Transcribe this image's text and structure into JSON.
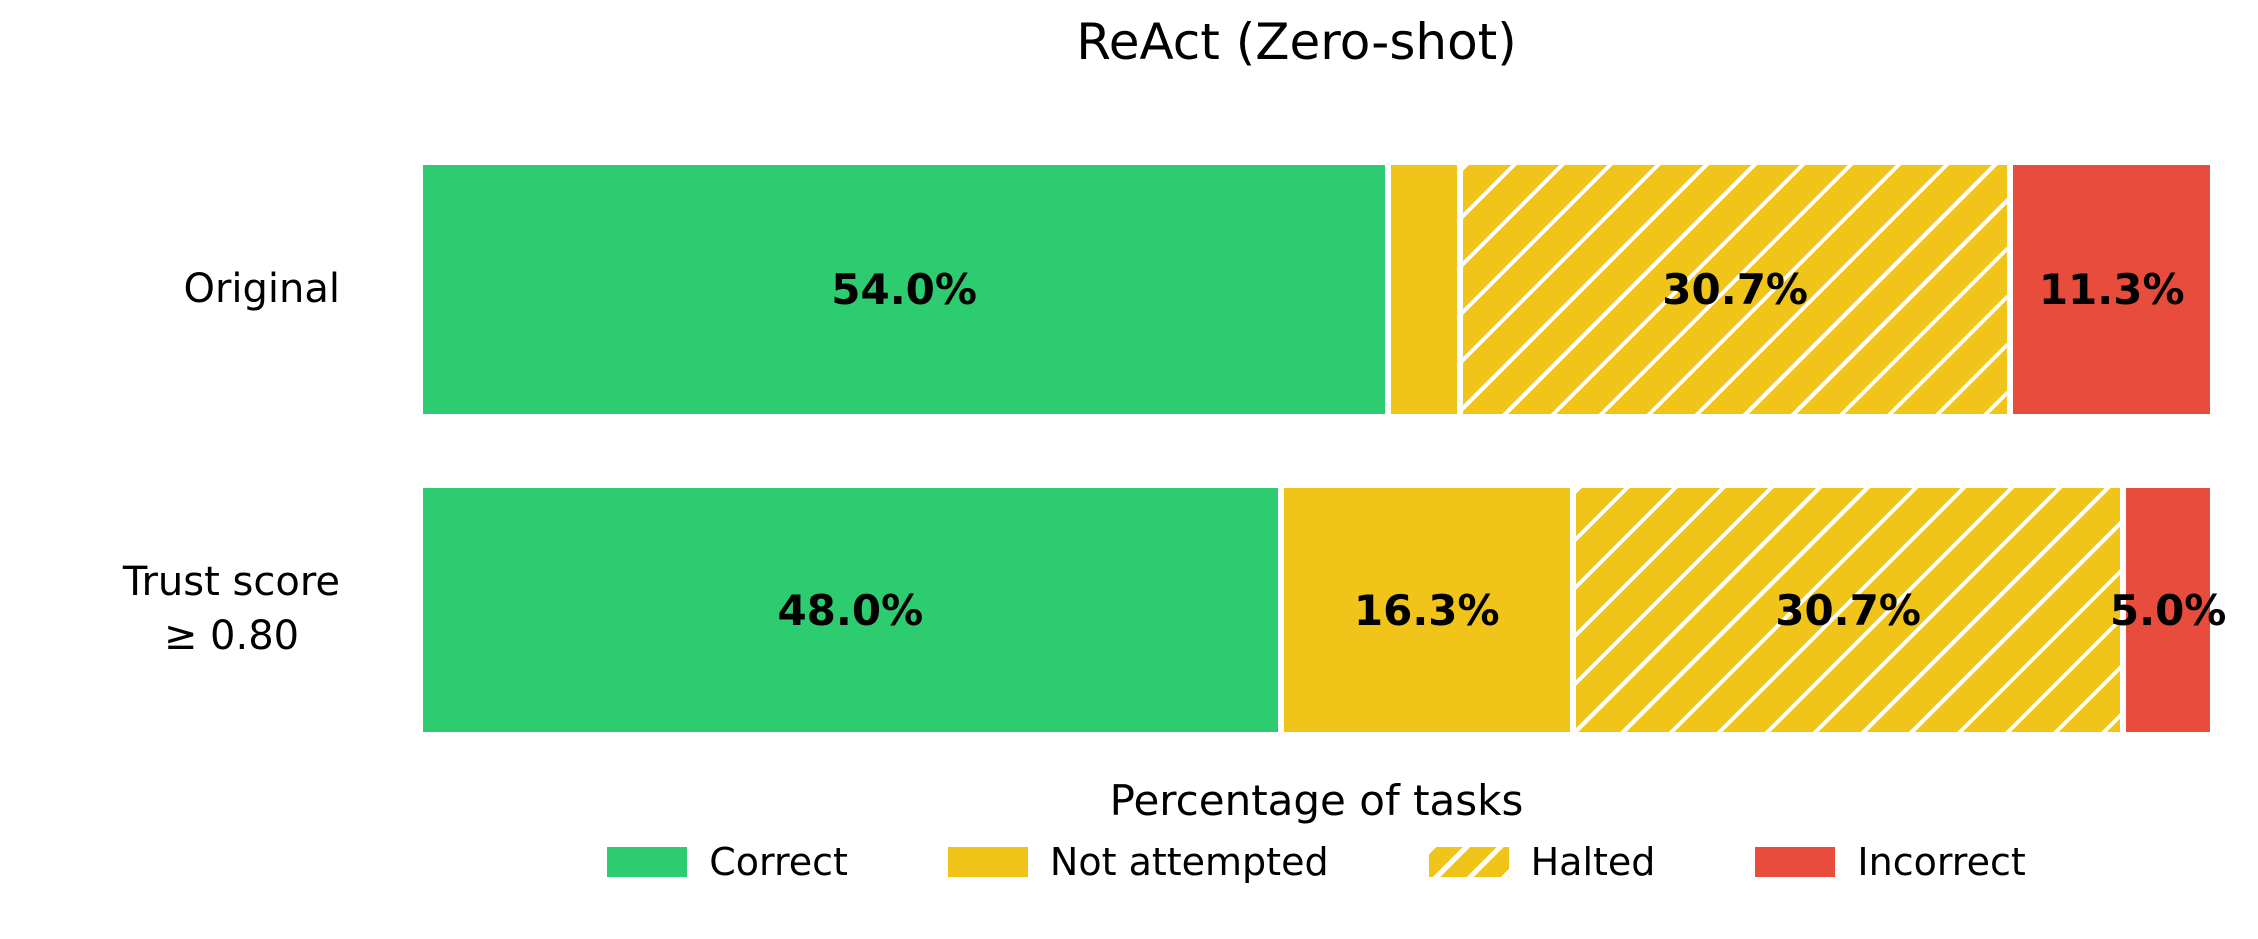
{
  "chart_data": {
    "type": "bar",
    "orientation": "horizontal",
    "stacked": true,
    "unit": "percent",
    "title": "ReAct (Zero-shot)",
    "xlabel": "Percentage of tasks",
    "xlim": [
      0,
      100
    ],
    "grid": false,
    "categories": [
      "Original",
      "Trust score\n≥ 0.80"
    ],
    "category_lines": [
      [
        "Original"
      ],
      [
        "Trust score",
        "≥ 0.80"
      ]
    ],
    "series": [
      {
        "name": "Correct",
        "style": "solid",
        "color": "#2ecc71",
        "values": [
          54.0,
          48.0
        ],
        "labels": [
          "54.0%",
          "48.0%"
        ]
      },
      {
        "name": "Not attempted",
        "style": "solid",
        "color": "#f0c419",
        "values": [
          4.0,
          16.3
        ],
        "labels": [
          "",
          "16.3%"
        ]
      },
      {
        "name": "Halted",
        "style": "hatched",
        "color": "#f0c419",
        "hatch_color": "#ffffff",
        "values": [
          30.7,
          30.7
        ],
        "labels": [
          "30.7%",
          "30.7%"
        ]
      },
      {
        "name": "Incorrect",
        "style": "solid",
        "color": "#e74c3c",
        "values": [
          11.3,
          5.0
        ],
        "labels": [
          "11.3%",
          "5.0%"
        ]
      }
    ],
    "legend": {
      "position": "bottom-center",
      "entries": [
        "Correct",
        "Not attempted",
        "Halted",
        "Incorrect"
      ]
    },
    "bar_label_color": "#000000",
    "text_color": "#000000",
    "background_color": "#ffffff"
  }
}
